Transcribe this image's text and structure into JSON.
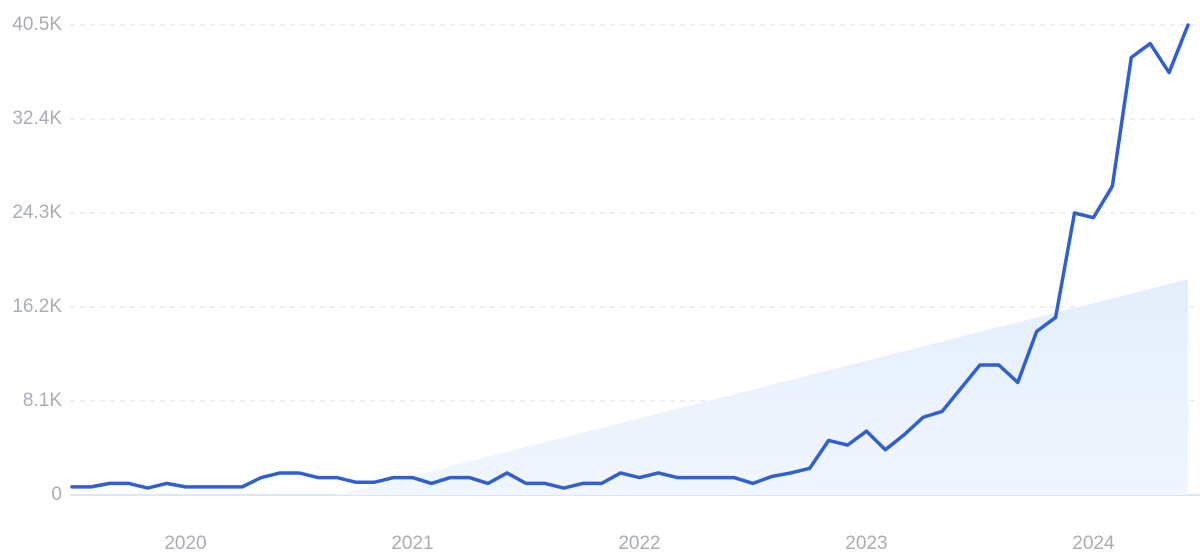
{
  "chart_data": {
    "type": "line",
    "categories": [
      null,
      null,
      null,
      null,
      null,
      null,
      "2020",
      null,
      null,
      null,
      null,
      null,
      null,
      null,
      null,
      null,
      null,
      null,
      "2021",
      null,
      null,
      null,
      null,
      null,
      null,
      null,
      null,
      null,
      null,
      null,
      "2022",
      null,
      null,
      null,
      null,
      null,
      null,
      null,
      null,
      null,
      null,
      null,
      "2023",
      null,
      null,
      null,
      null,
      null,
      null,
      null,
      null,
      null,
      null,
      null,
      "2024",
      null,
      null,
      null,
      null,
      null
    ],
    "series": [
      {
        "type": "area",
        "color": "#e7f0fc",
        "values": [
          null,
          null,
          null,
          null,
          null,
          null,
          null,
          null,
          null,
          null,
          null,
          null,
          null,
          null,
          0,
          413,
          827,
          1240,
          1653,
          2067,
          2480,
          2893,
          3307,
          3720,
          4133,
          4547,
          4960,
          5373,
          5787,
          6200,
          6613,
          7027,
          7440,
          7853,
          8267,
          8680,
          9093,
          9507,
          9920,
          10333,
          10747,
          11160,
          11573,
          11987,
          12400,
          12813,
          13227,
          13640,
          14053,
          14467,
          14880,
          15293,
          15707,
          16120,
          16533,
          16947,
          17360,
          17773,
          18187,
          18600
        ]
      },
      {
        "type": "line",
        "color": "#3060cf",
        "values": [
          700,
          700,
          1000,
          1000,
          600,
          1000,
          700,
          700,
          700,
          700,
          1500,
          1900,
          1900,
          1500,
          1500,
          1100,
          1100,
          1500,
          1500,
          1000,
          1500,
          1500,
          1000,
          1900,
          1000,
          1000,
          600,
          1000,
          1000,
          1900,
          1500,
          1900,
          1500,
          1500,
          1500,
          1500,
          1000,
          1600,
          1900,
          2300,
          4700,
          4300,
          5500,
          3900,
          5200,
          6700,
          7200,
          9200,
          11200,
          11200,
          9700,
          14100,
          15300,
          24300,
          23900,
          26600,
          37700,
          38900,
          36400,
          40500
        ]
      }
    ],
    "ylim": [
      0,
      40500
    ],
    "yticks": [
      0,
      {
        "value": 8100,
        "label": "8.1K"
      },
      {
        "value": 16200,
        "label": "16.2K"
      },
      {
        "value": 24300,
        "label": "24.3K"
      },
      {
        "value": 32400,
        "label": "32.4K"
      },
      {
        "value": 40500,
        "label": "40.5K"
      }
    ],
    "grid": true
  }
}
